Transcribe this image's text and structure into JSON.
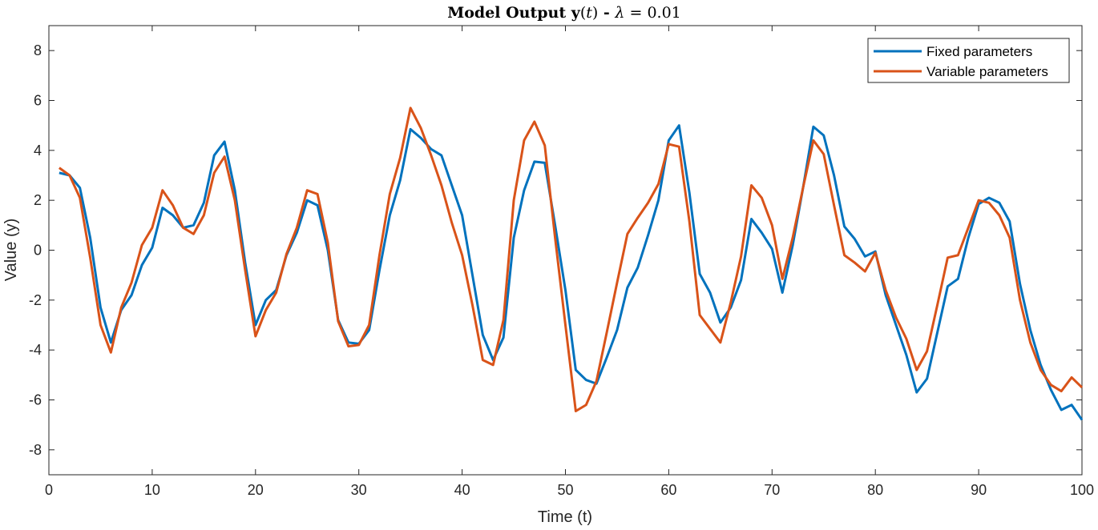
{
  "chart_data": {
    "type": "line",
    "title": {
      "bold_part": "Model Output ",
      "vector": "y",
      "paren_open": "(",
      "arg": "t",
      "paren_close": ")",
      "dash": " - ",
      "lambda": "λ",
      "equals": " = ",
      "value": "0.01"
    },
    "xlabel": "Time (t)",
    "ylabel": "Value (y)",
    "xlim": [
      0,
      100
    ],
    "ylim": [
      -9,
      9
    ],
    "xticks": [
      0,
      10,
      20,
      30,
      40,
      50,
      60,
      70,
      80,
      90,
      100
    ],
    "yticks": [
      -8,
      -6,
      -4,
      -2,
      0,
      2,
      4,
      6,
      8
    ],
    "grid": false,
    "legend_position": "top-right",
    "x": [
      1,
      2,
      3,
      4,
      5,
      6,
      7,
      8,
      9,
      10,
      11,
      12,
      13,
      14,
      15,
      16,
      17,
      18,
      19,
      20,
      21,
      22,
      23,
      24,
      25,
      26,
      27,
      28,
      29,
      30,
      31,
      32,
      33,
      34,
      35,
      36,
      37,
      38,
      39,
      40,
      41,
      42,
      43,
      44,
      45,
      46,
      47,
      48,
      49,
      50,
      51,
      52,
      53,
      54,
      55,
      56,
      57,
      58,
      59,
      60,
      61,
      62,
      63,
      64,
      65,
      66,
      67,
      68,
      69,
      70,
      71,
      72,
      73,
      74,
      75,
      76,
      77,
      78,
      79,
      80,
      81,
      82,
      83,
      84,
      85,
      86,
      87,
      88,
      89,
      90,
      91,
      92,
      93,
      94,
      95,
      96,
      97,
      98,
      99,
      100
    ],
    "series": [
      {
        "name": "Fixed parameters",
        "color": "#0072BD",
        "values": [
          3.1,
          3.0,
          2.5,
          0.5,
          -2.3,
          -3.7,
          -2.4,
          -1.8,
          -0.6,
          0.1,
          1.7,
          1.4,
          0.9,
          1.0,
          1.9,
          3.8,
          4.35,
          2.4,
          -0.5,
          -3.0,
          -2.0,
          -1.6,
          -0.2,
          0.7,
          2.0,
          1.8,
          0.0,
          -2.8,
          -3.7,
          -3.75,
          -3.2,
          -0.8,
          1.4,
          2.8,
          4.85,
          4.5,
          4.05,
          3.8,
          2.6,
          1.4,
          -1.0,
          -3.4,
          -4.4,
          -3.5,
          0.5,
          2.4,
          3.55,
          3.5,
          1.0,
          -1.6,
          -4.8,
          -5.2,
          -5.35,
          -4.3,
          -3.2,
          -1.5,
          -0.7,
          0.6,
          2.0,
          4.4,
          5.0,
          2.3,
          -0.95,
          -1.7,
          -2.9,
          -2.3,
          -1.2,
          1.25,
          0.7,
          0.05,
          -1.7,
          0.2,
          2.5,
          4.95,
          4.6,
          3.0,
          0.95,
          0.45,
          -0.25,
          -0.05,
          -1.8,
          -3.0,
          -4.2,
          -5.7,
          -5.15,
          -3.3,
          -1.45,
          -1.15,
          0.5,
          1.85,
          2.1,
          1.9,
          1.15,
          -1.35,
          -3.2,
          -4.6,
          -5.6,
          -6.4,
          -6.2,
          -6.8
        ]
      },
      {
        "name": "Variable parameters",
        "color": "#D95319",
        "values": [
          3.3,
          3.0,
          2.1,
          -0.3,
          -3.0,
          -4.1,
          -2.3,
          -1.3,
          0.2,
          0.9,
          2.4,
          1.8,
          0.9,
          0.65,
          1.4,
          3.1,
          3.75,
          2.0,
          -0.8,
          -3.45,
          -2.4,
          -1.7,
          -0.15,
          0.9,
          2.4,
          2.25,
          0.3,
          -2.85,
          -3.85,
          -3.8,
          -3.0,
          -0.2,
          2.25,
          3.7,
          5.7,
          4.9,
          3.8,
          2.6,
          1.1,
          -0.2,
          -2.2,
          -4.4,
          -4.6,
          -2.8,
          2.0,
          4.4,
          5.15,
          4.2,
          0.5,
          -3.0,
          -6.45,
          -6.2,
          -5.25,
          -3.3,
          -1.3,
          0.65,
          1.3,
          1.9,
          2.65,
          4.25,
          4.15,
          1.15,
          -2.6,
          -3.15,
          -3.7,
          -2.1,
          -0.25,
          2.6,
          2.1,
          1.0,
          -1.15,
          0.5,
          2.5,
          4.4,
          3.85,
          1.8,
          -0.2,
          -0.5,
          -0.85,
          -0.1,
          -1.6,
          -2.7,
          -3.55,
          -4.8,
          -4.05,
          -2.2,
          -0.3,
          -0.2,
          0.9,
          2.0,
          1.9,
          1.4,
          0.5,
          -2.0,
          -3.7,
          -4.8,
          -5.4,
          -5.65,
          -5.1,
          -5.5
        ]
      }
    ]
  }
}
